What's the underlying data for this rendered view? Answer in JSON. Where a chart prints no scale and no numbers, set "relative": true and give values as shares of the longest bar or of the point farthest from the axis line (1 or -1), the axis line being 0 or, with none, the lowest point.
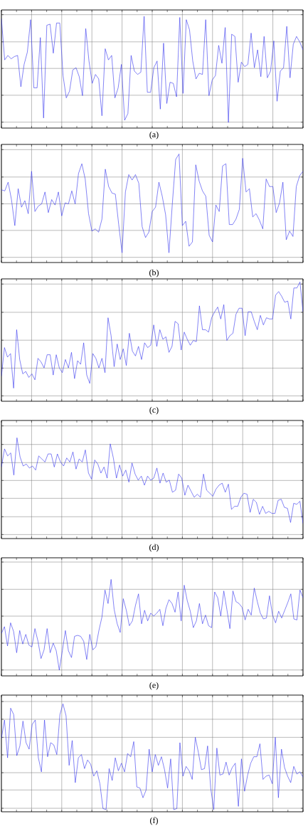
{
  "chart_data": [
    {
      "type": "line",
      "title": "(a)",
      "relative": true,
      "grid": true,
      "marker": "none",
      "categories": [
        null,
        null,
        null,
        null,
        null,
        null,
        null,
        null,
        null,
        null,
        null,
        null,
        null,
        null,
        null,
        null,
        null,
        null,
        null,
        null,
        null,
        null,
        null,
        null,
        null,
        null,
        null,
        null,
        null,
        null,
        null,
        null,
        null,
        null,
        null,
        null,
        null,
        null,
        null,
        null,
        null,
        null,
        null,
        null,
        null,
        null,
        null,
        null,
        null,
        null,
        null,
        null,
        null,
        null,
        null,
        null,
        null,
        null,
        null,
        null,
        null,
        null,
        null,
        null,
        null,
        null,
        null,
        null,
        null,
        null,
        null,
        null,
        null,
        null,
        null,
        null,
        null,
        null,
        null,
        null,
        null,
        null,
        null,
        null,
        null,
        null,
        null,
        null,
        null,
        null,
        null,
        null,
        null,
        null
      ],
      "series": [
        {
          "color": "#3333ee",
          "values": [
            0.98,
            0.61,
            0.65,
            0.62,
            0.64,
            0.65,
            0.37,
            0.57,
            0.68,
            0.97,
            0.36,
            0.36,
            0.81,
            0.09,
            0.92,
            0.93,
            0.67,
            0.94,
            0.94,
            0.47,
            0.27,
            0.33,
            0.52,
            0.54,
            0.46,
            0.29,
            0.89,
            0.6,
            0.4,
            0.48,
            0.44,
            0.11,
            0.71,
            0.61,
            0.65,
            0.27,
            0.36,
            0.57,
            0.07,
            0.13,
            0.65,
            0.51,
            0.48,
            0.5,
            1.0,
            0.32,
            0.32,
            0.54,
            0.6,
            0.17,
            0.76,
            0.22,
            0.41,
            0.4,
            0.28,
            0.99,
            0.31,
            0.97,
            0.88,
            0.6,
            0.44,
            0.49,
            0.48,
            0.97,
            0.29,
            0.43,
            0.47,
            0.74,
            0.58,
            0.9,
            0.05,
            0.84,
            0.82,
            0.41,
            0.59,
            0.55,
            0.57,
            0.85,
            0.54,
            0.7,
            0.46,
            0.82,
            0.45,
            0.51,
            0.78,
            0.24,
            0.51,
            0.54,
            0.91,
            0.45,
            0.75,
            0.82,
            0.77,
            0.7
          ]
        }
      ]
    },
    {
      "type": "line",
      "title": "(b)",
      "relative": true,
      "grid": true,
      "marker": "none",
      "categories": [
        null,
        null,
        null,
        null,
        null,
        null,
        null,
        null,
        null,
        null,
        null,
        null,
        null,
        null,
        null,
        null,
        null,
        null,
        null,
        null,
        null,
        null,
        null,
        null,
        null,
        null,
        null,
        null,
        null,
        null,
        null,
        null,
        null,
        null,
        null,
        null,
        null,
        null,
        null,
        null,
        null,
        null,
        null,
        null,
        null,
        null,
        null,
        null,
        null,
        null,
        null,
        null,
        null,
        null,
        null,
        null,
        null,
        null,
        null,
        null,
        null,
        null,
        null,
        null,
        null,
        null,
        null,
        null,
        null,
        null,
        null,
        null,
        null,
        null,
        null,
        null,
        null,
        null,
        null,
        null,
        null,
        null,
        null,
        null,
        null,
        null,
        null,
        null,
        null,
        null,
        null
      ],
      "series": [
        {
          "color": "#3333ee",
          "values": [
            0.67,
            0.66,
            0.74,
            0.58,
            0.34,
            0.68,
            0.51,
            0.57,
            0.45,
            0.84,
            0.47,
            0.52,
            0.54,
            0.65,
            0.46,
            0.58,
            0.53,
            0.65,
            0.43,
            0.55,
            0.54,
            0.66,
            0.54,
            0.82,
            0.91,
            0.77,
            0.45,
            0.29,
            0.31,
            0.28,
            0.4,
            0.86,
            0.7,
            0.64,
            0.63,
            0.35,
            0.09,
            0.65,
            0.81,
            0.76,
            0.81,
            0.73,
            0.33,
            0.23,
            0.28,
            0.47,
            0.51,
            0.74,
            0.61,
            0.44,
            0.09,
            0.54,
            0.95,
            1.0,
            0.34,
            0.38,
            0.15,
            0.19,
            0.9,
            0.75,
            0.66,
            0.61,
            0.25,
            0.19,
            0.53,
            0.47,
            0.89,
            0.91,
            0.35,
            0.35,
            0.4,
            0.49,
            0.96,
            0.65,
            0.68,
            0.42,
            0.45,
            0.39,
            0.31,
            0.77,
            0.7,
            0.7,
            0.46,
            0.55,
            0.74,
            0.21,
            0.29,
            0.24,
            0.7,
            0.8,
            0.84
          ]
        }
      ]
    },
    {
      "type": "line",
      "title": "(c)",
      "relative": true,
      "grid": true,
      "marker": "none",
      "categories": [
        null,
        null,
        null,
        null,
        null,
        null,
        null,
        null,
        null,
        null,
        null,
        null,
        null,
        null,
        null,
        null,
        null,
        null,
        null,
        null,
        null,
        null,
        null,
        null,
        null,
        null,
        null,
        null,
        null,
        null,
        null,
        null,
        null,
        null,
        null,
        null,
        null,
        null,
        null,
        null,
        null,
        null,
        null,
        null,
        null,
        null,
        null,
        null,
        null,
        null,
        null,
        null,
        null,
        null,
        null,
        null,
        null,
        null,
        null,
        null,
        null,
        null,
        null,
        null,
        null,
        null,
        null,
        null,
        null,
        null,
        null,
        null,
        null,
        null,
        null,
        null,
        null,
        null,
        null,
        null,
        null,
        null,
        null,
        null,
        null,
        null,
        null,
        null,
        null,
        null,
        null,
        null,
        null,
        null,
        null,
        null,
        null,
        null,
        null,
        null
      ],
      "series": [
        {
          "color": "#3333ee",
          "values": [
            0.21,
            0.45,
            0.37,
            0.4,
            0.11,
            0.6,
            0.35,
            0.23,
            0.25,
            0.2,
            0.23,
            0.18,
            0.36,
            0.33,
            0.28,
            0.39,
            0.39,
            0.22,
            0.39,
            0.28,
            0.24,
            0.35,
            0.28,
            0.41,
            0.19,
            0.34,
            0.31,
            0.49,
            0.22,
            0.15,
            0.4,
            0.36,
            0.28,
            0.36,
            0.24,
            0.7,
            0.55,
            0.29,
            0.48,
            0.35,
            0.44,
            0.3,
            0.57,
            0.42,
            0.38,
            0.46,
            0.35,
            0.49,
            0.45,
            0.47,
            0.64,
            0.46,
            0.6,
            0.52,
            0.54,
            0.41,
            0.46,
            0.67,
            0.65,
            0.43,
            0.58,
            0.52,
            0.47,
            0.51,
            0.5,
            0.8,
            0.6,
            0.6,
            0.58,
            0.7,
            0.75,
            0.79,
            0.69,
            0.81,
            0.51,
            0.55,
            0.57,
            0.73,
            0.78,
            0.78,
            0.55,
            0.75,
            0.75,
            0.67,
            0.6,
            0.72,
            0.64,
            0.7,
            0.69,
            0.69,
            0.89,
            0.92,
            0.88,
            0.83,
            0.84,
            0.69,
            0.95,
            0.95,
            1.0,
            0.75
          ]
        }
      ]
    },
    {
      "type": "line",
      "title": "(d)",
      "relative": true,
      "grid": true,
      "marker": "none",
      "categories": [
        null,
        null,
        null,
        null,
        null,
        null,
        null,
        null,
        null,
        null,
        null,
        null,
        null,
        null,
        null,
        null,
        null,
        null,
        null,
        null,
        null,
        null,
        null,
        null,
        null,
        null,
        null,
        null,
        null,
        null,
        null,
        null,
        null,
        null,
        null,
        null,
        null,
        null,
        null,
        null,
        null,
        null,
        null,
        null,
        null,
        null,
        null,
        null,
        null,
        null,
        null,
        null,
        null,
        null,
        null,
        null,
        null,
        null,
        null,
        null,
        null,
        null,
        null,
        null,
        null,
        null,
        null,
        null,
        null,
        null,
        null,
        null,
        null,
        null,
        null,
        null,
        null,
        null,
        null,
        null,
        null,
        null,
        null,
        null,
        null,
        null,
        null,
        null,
        null,
        null,
        null,
        null,
        null,
        null,
        null,
        null,
        null,
        null
      ],
      "series": [
        {
          "color": "#3333ee",
          "values": [
            0.71,
            0.89,
            0.82,
            0.85,
            0.63,
            1.0,
            0.81,
            0.72,
            0.74,
            0.7,
            0.72,
            0.68,
            0.82,
            0.79,
            0.76,
            0.84,
            0.84,
            0.71,
            0.84,
            0.76,
            0.72,
            0.8,
            0.76,
            0.86,
            0.69,
            0.79,
            0.76,
            0.88,
            0.65,
            0.59,
            0.78,
            0.74,
            0.65,
            0.71,
            0.6,
            0.94,
            0.8,
            0.6,
            0.73,
            0.62,
            0.68,
            0.56,
            0.75,
            0.64,
            0.58,
            0.62,
            0.53,
            0.62,
            0.58,
            0.6,
            0.7,
            0.55,
            0.65,
            0.56,
            0.58,
            0.46,
            0.48,
            0.64,
            0.6,
            0.43,
            0.53,
            0.47,
            0.41,
            0.44,
            0.41,
            0.64,
            0.48,
            0.45,
            0.42,
            0.49,
            0.53,
            0.55,
            0.46,
            0.54,
            0.29,
            0.32,
            0.32,
            0.41,
            0.45,
            0.44,
            0.26,
            0.39,
            0.36,
            0.24,
            0.32,
            0.25,
            0.27,
            0.25,
            0.25,
            0.38,
            0.39,
            0.31,
            0.3,
            0.16,
            0.35,
            0.34,
            0.37,
            0.15
          ]
        }
      ]
    },
    {
      "type": "line",
      "title": "(e)",
      "relative": true,
      "grid": true,
      "marker": "none",
      "categories": [
        null,
        null,
        null,
        null,
        null,
        null,
        null,
        null,
        null,
        null,
        null,
        null,
        null,
        null,
        null,
        null,
        null,
        null,
        null,
        null,
        null,
        null,
        null,
        null,
        null,
        null,
        null,
        null,
        null,
        null,
        null,
        null,
        null,
        null,
        null,
        null,
        null,
        null,
        null,
        null,
        null,
        null,
        null,
        null,
        null,
        null,
        null,
        null,
        null,
        null,
        null,
        null,
        null,
        null,
        null,
        null,
        null,
        null,
        null,
        null,
        null,
        null,
        null,
        null,
        null,
        null,
        null,
        null,
        null,
        null,
        null,
        null,
        null,
        null,
        null,
        null,
        null,
        null,
        null,
        null,
        null,
        null,
        null,
        null,
        null,
        null,
        null,
        null,
        null,
        null,
        null,
        null,
        null,
        null,
        null,
        null,
        null,
        null,
        null,
        null
      ],
      "series": [
        {
          "color": "#3333ee",
          "values": [
            0.44,
            0.51,
            0.31,
            0.55,
            0.46,
            0.24,
            0.47,
            0.33,
            0.43,
            0.32,
            0.3,
            0.49,
            0.36,
            0.18,
            0.27,
            0.49,
            0.24,
            0.34,
            0.26,
            0.06,
            0.26,
            0.47,
            0.26,
            0.19,
            0.41,
            0.42,
            0.41,
            0.36,
            0.17,
            0.43,
            0.27,
            0.3,
            0.47,
            0.61,
            0.89,
            0.75,
            1.0,
            0.69,
            0.54,
            0.45,
            0.8,
            0.68,
            0.52,
            0.57,
            0.73,
            0.85,
            0.54,
            0.68,
            0.57,
            0.65,
            0.62,
            0.65,
            0.69,
            0.52,
            0.7,
            0.79,
            0.75,
            0.66,
            0.87,
            0.57,
            0.94,
            0.78,
            0.67,
            0.5,
            0.57,
            0.75,
            0.54,
            0.63,
            0.52,
            0.5,
            0.87,
            0.81,
            0.62,
            0.88,
            0.69,
            0.49,
            0.88,
            0.77,
            0.75,
            0.71,
            0.58,
            0.69,
            0.63,
            0.91,
            0.77,
            0.65,
            0.59,
            0.6,
            0.83,
            0.63,
            0.55,
            0.67,
            0.6,
            0.68,
            0.76,
            0.85,
            0.59,
            0.58,
            0.89,
            0.81
          ]
        }
      ]
    },
    {
      "type": "line",
      "title": "(f)",
      "relative": true,
      "grid": true,
      "marker": "none",
      "categories": [
        null,
        null,
        null,
        null,
        null,
        null,
        null,
        null,
        null,
        null,
        null,
        null,
        null,
        null,
        null,
        null,
        null,
        null,
        null,
        null,
        null,
        null,
        null,
        null,
        null,
        null,
        null,
        null,
        null,
        null,
        null,
        null,
        null,
        null,
        null,
        null,
        null,
        null,
        null,
        null,
        null,
        null,
        null,
        null,
        null,
        null,
        null,
        null,
        null,
        null,
        null,
        null,
        null,
        null,
        null,
        null,
        null,
        null,
        null,
        null,
        null,
        null,
        null,
        null,
        null,
        null,
        null,
        null,
        null,
        null,
        null,
        null,
        null,
        null,
        null,
        null,
        null,
        null,
        null,
        null,
        null,
        null,
        null,
        null,
        null,
        null,
        null,
        null,
        null,
        null,
        null,
        null,
        null,
        null,
        null,
        null,
        null,
        null,
        null
      ],
      "series": [
        {
          "color": "#3333ee",
          "values": [
            0.68,
            0.85,
            0.5,
            0.96,
            0.9,
            0.52,
            0.61,
            0.84,
            0.64,
            0.58,
            0.81,
            0.85,
            0.5,
            0.37,
            0.85,
            0.51,
            0.64,
            0.62,
            0.53,
            0.9,
            1.0,
            0.89,
            0.43,
            0.66,
            0.27,
            0.5,
            0.53,
            0.4,
            0.48,
            0.44,
            0.33,
            0.38,
            0.26,
            0.03,
            0.02,
            0.4,
            0.29,
            0.5,
            0.38,
            0.45,
            0.37,
            0.54,
            0.51,
            0.65,
            0.23,
            0.22,
            0.13,
            0.2,
            0.58,
            0.37,
            0.53,
            0.43,
            0.51,
            0.39,
            0.22,
            0.49,
            0.02,
            0.03,
            0.64,
            0.33,
            0.42,
            0.38,
            0.3,
            0.69,
            0.55,
            0.39,
            0.4,
            0.61,
            0.22,
            0.02,
            0.59,
            0.34,
            0.35,
            0.46,
            0.34,
            0.41,
            0.45,
            0.05,
            0.49,
            0.19,
            0.34,
            0.45,
            0.51,
            0.51,
            0.63,
            0.3,
            0.33,
            0.34,
            0.26,
            0.69,
            0.13,
            0.58,
            0.41,
            0.33,
            0.27,
            0.42,
            0.35,
            0.37,
            0.32
          ]
        }
      ]
    }
  ]
}
